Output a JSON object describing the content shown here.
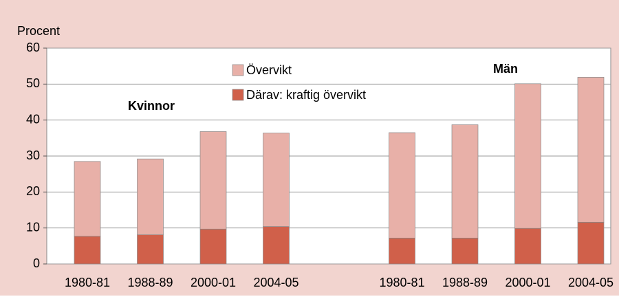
{
  "chart_data": {
    "type": "stacked_bar",
    "y_label": "Procent",
    "annotations": [
      "Kvinnor",
      "Män"
    ],
    "categories": [
      "1980-81",
      "1988-89",
      "2000-01",
      "2004-05",
      null,
      "1980-81",
      "1988-89",
      "2000-01",
      "2004-05"
    ],
    "series": [
      {
        "name": "Övervikt",
        "color": "#e8b0a8",
        "values": [
          20.8,
          21.1,
          27.1,
          26.0,
          null,
          29.3,
          31.5,
          40.2,
          40.3
        ]
      },
      {
        "name": "Därav: kraftig övervikt",
        "color": "#d0604a",
        "values": [
          7.7,
          8.1,
          9.7,
          10.4,
          null,
          7.2,
          7.2,
          9.9,
          11.6
        ]
      }
    ],
    "ylim": [
      0,
      60
    ],
    "yticks": [
      0,
      10,
      20,
      30,
      40,
      50,
      60
    ],
    "grid": true
  }
}
